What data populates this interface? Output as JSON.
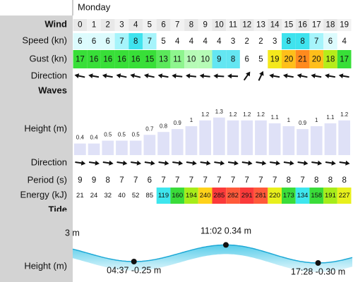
{
  "day": "Monday",
  "hours": [
    0,
    1,
    2,
    3,
    4,
    5,
    6,
    7,
    8,
    9,
    10,
    11,
    12,
    13,
    14,
    15,
    16,
    17,
    18,
    19
  ],
  "wind": {
    "label": "Wind",
    "speed_label": "Speed (kn)",
    "speed": [
      6,
      6,
      6,
      7,
      8,
      7,
      5,
      4,
      4,
      4,
      4,
      3,
      2,
      2,
      3,
      8,
      8,
      7,
      6,
      4
    ],
    "gust_label": "Gust (kn)",
    "gust": [
      17,
      16,
      16,
      16,
      16,
      15,
      13,
      11,
      10,
      10,
      9,
      8,
      6,
      5,
      19,
      20,
      21,
      20,
      18,
      17
    ],
    "direction_label": "Direction",
    "direction_deg": [
      192,
      190,
      190,
      192,
      194,
      192,
      190,
      186,
      186,
      186,
      184,
      182,
      305,
      295,
      190,
      190,
      192,
      190,
      190,
      190
    ]
  },
  "waves": {
    "label": "Waves",
    "height_label": "Height (m)",
    "height": [
      0.4,
      0.4,
      0.5,
      0.5,
      0.5,
      0.7,
      0.8,
      0.9,
      1.0,
      1.2,
      1.3,
      1.2,
      1.2,
      1.2,
      1.1,
      1.0,
      0.9,
      1.0,
      1.1,
      1.2
    ],
    "direction_label": "Direction",
    "direction_deg": [
      8,
      8,
      8,
      8,
      8,
      8,
      8,
      8,
      8,
      8,
      8,
      8,
      8,
      8,
      8,
      8,
      8,
      8,
      8,
      8
    ],
    "period_label": "Period (s)",
    "period": [
      9,
      9,
      8,
      7,
      7,
      6,
      7,
      7,
      7,
      7,
      7,
      7,
      7,
      7,
      7,
      8,
      7,
      8,
      8,
      8
    ],
    "energy_label": "Energy (kJ)",
    "energy": [
      21,
      24,
      32,
      40,
      52,
      85,
      119,
      160,
      194,
      240,
      285,
      282,
      291,
      281,
      220,
      173,
      134,
      158,
      191,
      227
    ]
  },
  "tide": {
    "label": "Tide",
    "height_label": "Height (m)",
    "edge_label": "3 m",
    "extremes": [
      {
        "label": "04:37 -0.25 m",
        "value": -0.25
      },
      {
        "label": "11:02 0.34 m",
        "value": 0.34
      },
      {
        "label": "17:28 -0.30 m",
        "value": -0.3
      }
    ]
  }
}
